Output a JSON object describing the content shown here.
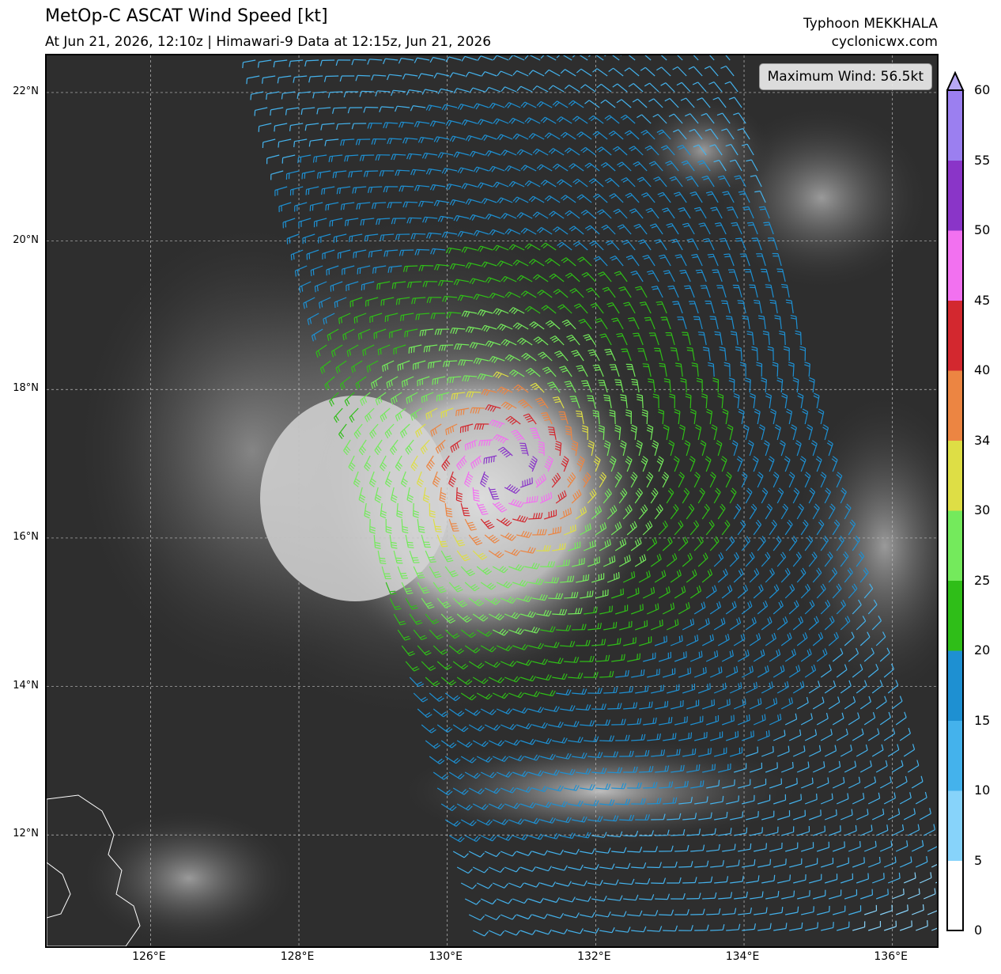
{
  "header": {
    "title": "MetOp-C ASCAT Wind Speed [kt]",
    "subtitle": "At Jun 21, 2026, 12:10z | Himawari-9 Data at 12:15z, Jun 21, 2026",
    "storm_name": "Typhoon MEKKHALA",
    "site": "cyclonicwx.com"
  },
  "annotation": {
    "max_wind": "Maximum Wind: 56.5kt"
  },
  "axes": {
    "lon_labels": [
      "126°E",
      "128°E",
      "130°E",
      "132°E",
      "134°E",
      "136°E"
    ],
    "lat_labels": [
      "22°N",
      "20°N",
      "18°N",
      "16°N",
      "14°N",
      "12°N"
    ],
    "lon_values": [
      126,
      128,
      130,
      132,
      134,
      136
    ],
    "lat_values": [
      22,
      20,
      18,
      16,
      14,
      12
    ],
    "lon_range": [
      124.6,
      136.6
    ],
    "lat_range": [
      10.5,
      22.5
    ]
  },
  "colorbar": {
    "labels": [
      "0",
      "5",
      "10",
      "15",
      "20",
      "25",
      "30",
      "34",
      "40",
      "45",
      "50",
      "55",
      "60"
    ],
    "bounds": [
      0,
      5,
      10,
      15,
      20,
      25,
      30,
      34,
      40,
      45,
      50,
      55,
      60
    ],
    "colors": [
      "#ffffff",
      "#87d3fa",
      "#44b2ec",
      "#1e90d2",
      "#2fbe18",
      "#74ea5c",
      "#dede45",
      "#ec8542",
      "#d3282f",
      "#f271f0",
      "#8a35c8",
      "#9b7ff0"
    ],
    "extend_color": "#b8a8f5"
  },
  "storm_center": {
    "lon": 130.8,
    "lat": 16.9
  },
  "swath": {
    "west_lon_north": 127.4,
    "west_lon_south": 130.4,
    "east_lon_north": 133.8,
    "east_lon_south": 136.9
  }
}
